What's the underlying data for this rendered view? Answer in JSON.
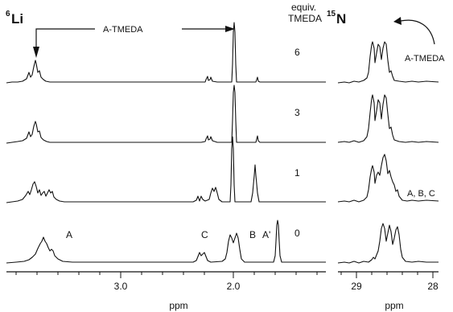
{
  "figure": {
    "li_nucleus": {
      "mass": "6",
      "symbol": "Li"
    },
    "n_nucleus": {
      "mass": "15",
      "symbol": "N"
    },
    "header_equiv": "equiv.",
    "header_tmeda": "TMEDA",
    "atmeda_arrow_label": "A-TMEDA",
    "atmeda_n_label": "A-TMEDA",
    "abc_label": "A, B, C",
    "peak_labels": {
      "A": "A",
      "C": "C",
      "B": "B",
      "Aprime": "A'"
    },
    "equivalents": [
      "6",
      "3",
      "1",
      "0"
    ],
    "li_axis": {
      "unit": "ppm",
      "ticks": [
        "3.0",
        "2.0"
      ],
      "range_ppm": [
        3.9,
        1.35
      ]
    },
    "n_axis": {
      "unit": "ppm",
      "ticks": [
        "29",
        "28"
      ],
      "range_ppm": [
        29.4,
        28.0
      ]
    }
  }
}
